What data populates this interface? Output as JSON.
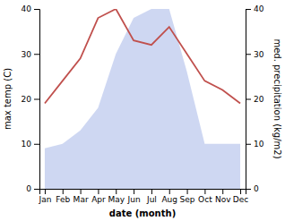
{
  "chart_data": {
    "type": "line",
    "xlabel": "date (month)",
    "ylabel": "max temp (C)",
    "y2label": "med. precipitation (kg/m2)",
    "categories": [
      "Jan",
      "Feb",
      "Mar",
      "Apr",
      "May",
      "Jun",
      "Jul",
      "Aug",
      "Sep",
      "Oct",
      "Nov",
      "Dec"
    ],
    "series": [
      {
        "type": "area",
        "axis": "y2",
        "color": "#c6d0f0",
        "values": [
          9,
          10,
          13,
          18,
          30,
          38,
          40,
          40,
          26,
          10,
          10,
          10
        ]
      },
      {
        "type": "line",
        "color": "#c0504d",
        "values": [
          19,
          24,
          29,
          38,
          40,
          33,
          32,
          36,
          30,
          24,
          22,
          19
        ]
      }
    ],
    "ylim": [
      0,
      40
    ],
    "yticks": [
      0,
      10,
      20,
      30,
      40
    ],
    "y2lim": [
      0,
      40
    ],
    "y2ticks": [
      0,
      10,
      20,
      30,
      40
    ],
    "grid": false
  }
}
